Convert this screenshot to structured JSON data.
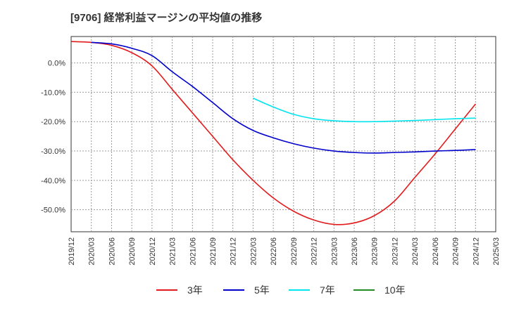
{
  "chart_data": {
    "type": "line",
    "title": "[9706]  経常利益マージンの平均値の推移",
    "xlabel": "",
    "ylabel": "",
    "ylim": [
      -57.5,
      9
    ],
    "y_ticks": [
      0,
      -10,
      -20,
      -30,
      -40,
      -50
    ],
    "y_tick_labels": [
      "0.0%",
      "-10.0%",
      "-20.0%",
      "-30.0%",
      "-40.0%",
      "-50.0%"
    ],
    "x_tick_labels": [
      "2019/12",
      "2020/03",
      "2020/06",
      "2020/09",
      "2020/12",
      "2021/03",
      "2021/06",
      "2021/09",
      "2021/12",
      "2022/03",
      "2022/06",
      "2022/09",
      "2022/12",
      "2023/03",
      "2023/06",
      "2023/09",
      "2023/12",
      "2024/03",
      "2024/06",
      "2024/09",
      "2024/12",
      "2025/03"
    ],
    "grid": true,
    "legend_position": "bottom",
    "series": [
      {
        "name": "3年",
        "color": "#e31a1c",
        "points": [
          [
            "2019/12",
            7.3
          ],
          [
            "2020/03",
            7.0
          ],
          [
            "2020/06",
            6.0
          ],
          [
            "2020/09",
            3.5
          ],
          [
            "2020/12",
            -1.0
          ],
          [
            "2021/03",
            -9.0
          ],
          [
            "2021/06",
            -17.0
          ],
          [
            "2021/09",
            -25.0
          ],
          [
            "2021/12",
            -33.0
          ],
          [
            "2022/03",
            -40.0
          ],
          [
            "2022/06",
            -46.0
          ],
          [
            "2022/09",
            -50.5
          ],
          [
            "2022/12",
            -53.5
          ],
          [
            "2023/03",
            -55.0
          ],
          [
            "2023/06",
            -54.5
          ],
          [
            "2023/09",
            -52.0
          ],
          [
            "2023/12",
            -47.0
          ],
          [
            "2024/03",
            -39.0
          ],
          [
            "2024/06",
            -31.0
          ],
          [
            "2024/09",
            -22.5
          ],
          [
            "2024/12",
            -14.0
          ]
        ]
      },
      {
        "name": "5年",
        "color": "#0000cc",
        "points": [
          [
            "2020/03",
            7.0
          ],
          [
            "2020/06",
            6.5
          ],
          [
            "2020/09",
            5.0
          ],
          [
            "2020/12",
            2.5
          ],
          [
            "2021/03",
            -3.0
          ],
          [
            "2021/06",
            -8.0
          ],
          [
            "2021/09",
            -13.5
          ],
          [
            "2021/12",
            -19.0
          ],
          [
            "2022/03",
            -23.0
          ],
          [
            "2022/06",
            -25.5
          ],
          [
            "2022/09",
            -27.5
          ],
          [
            "2022/12",
            -29.0
          ],
          [
            "2023/03",
            -30.0
          ],
          [
            "2023/06",
            -30.5
          ],
          [
            "2023/09",
            -30.7
          ],
          [
            "2023/12",
            -30.5
          ],
          [
            "2024/03",
            -30.3
          ],
          [
            "2024/06",
            -30.0
          ],
          [
            "2024/09",
            -29.8
          ],
          [
            "2024/12",
            -29.5
          ]
        ]
      },
      {
        "name": "7年",
        "color": "#00e5ee",
        "points": [
          [
            "2022/03",
            -12.0
          ],
          [
            "2022/06",
            -15.0
          ],
          [
            "2022/09",
            -17.5
          ],
          [
            "2022/12",
            -19.0
          ],
          [
            "2023/03",
            -19.7
          ],
          [
            "2023/06",
            -20.0
          ],
          [
            "2023/09",
            -20.0
          ],
          [
            "2023/12",
            -19.8
          ],
          [
            "2024/03",
            -19.6
          ],
          [
            "2024/06",
            -19.3
          ],
          [
            "2024/09",
            -19.0
          ],
          [
            "2024/12",
            -18.8
          ]
        ]
      },
      {
        "name": "10年",
        "color": "#228b22",
        "points": []
      }
    ]
  }
}
